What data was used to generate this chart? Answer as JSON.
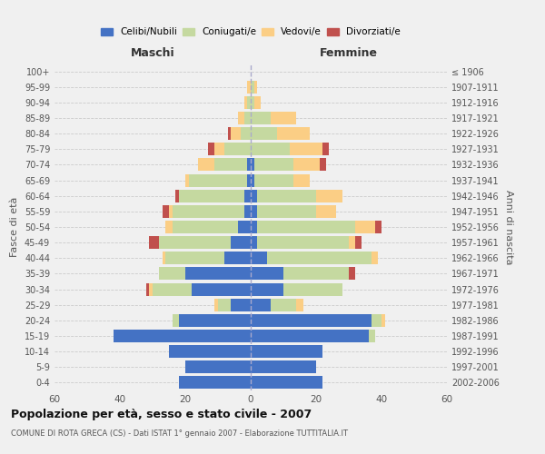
{
  "age_groups": [
    "0-4",
    "5-9",
    "10-14",
    "15-19",
    "20-24",
    "25-29",
    "30-34",
    "35-39",
    "40-44",
    "45-49",
    "50-54",
    "55-59",
    "60-64",
    "65-69",
    "70-74",
    "75-79",
    "80-84",
    "85-89",
    "90-94",
    "95-99",
    "100+"
  ],
  "birth_years": [
    "2002-2006",
    "1997-2001",
    "1992-1996",
    "1987-1991",
    "1982-1986",
    "1977-1981",
    "1972-1976",
    "1967-1971",
    "1962-1966",
    "1957-1961",
    "1952-1956",
    "1947-1951",
    "1942-1946",
    "1937-1941",
    "1932-1936",
    "1927-1931",
    "1922-1926",
    "1917-1921",
    "1912-1916",
    "1907-1911",
    "≤ 1906"
  ],
  "maschi": {
    "celibi": [
      22,
      20,
      25,
      42,
      22,
      6,
      18,
      20,
      8,
      6,
      4,
      2,
      2,
      1,
      1,
      0,
      0,
      0,
      0,
      0,
      0
    ],
    "coniugati": [
      0,
      0,
      0,
      0,
      2,
      4,
      12,
      8,
      18,
      22,
      20,
      22,
      20,
      18,
      10,
      8,
      3,
      2,
      1,
      0,
      0
    ],
    "vedovi": [
      0,
      0,
      0,
      0,
      0,
      1,
      1,
      0,
      1,
      0,
      2,
      1,
      0,
      1,
      5,
      3,
      3,
      2,
      1,
      1,
      0
    ],
    "divorziati": [
      0,
      0,
      0,
      0,
      0,
      0,
      1,
      0,
      0,
      3,
      0,
      2,
      1,
      0,
      0,
      2,
      1,
      0,
      0,
      0,
      0
    ]
  },
  "femmine": {
    "nubili": [
      22,
      20,
      22,
      36,
      37,
      6,
      10,
      10,
      5,
      2,
      2,
      2,
      2,
      1,
      1,
      0,
      0,
      0,
      0,
      0,
      0
    ],
    "coniugate": [
      0,
      0,
      0,
      2,
      3,
      8,
      18,
      20,
      32,
      28,
      30,
      18,
      18,
      12,
      12,
      12,
      8,
      6,
      1,
      1,
      0
    ],
    "vedove": [
      0,
      0,
      0,
      0,
      1,
      2,
      0,
      0,
      2,
      2,
      6,
      6,
      8,
      5,
      8,
      10,
      10,
      8,
      2,
      1,
      0
    ],
    "divorziate": [
      0,
      0,
      0,
      0,
      0,
      0,
      0,
      2,
      0,
      2,
      2,
      0,
      0,
      0,
      2,
      2,
      0,
      0,
      0,
      0,
      0
    ]
  },
  "colors": {
    "celibi": "#4472C4",
    "coniugati": "#C5D9A0",
    "vedovi": "#FBCE85",
    "divorziati": "#C0504D"
  },
  "xlim": 60,
  "title": "Popolazione per età, sesso e stato civile - 2007",
  "subtitle": "COMUNE DI ROTA GRECA (CS) - Dati ISTAT 1° gennaio 2007 - Elaborazione TUTTITALIA.IT",
  "ylabel_left": "Fasce di età",
  "ylabel_right": "Anni di nascita",
  "xlabel_maschi": "Maschi",
  "xlabel_femmine": "Femmine"
}
